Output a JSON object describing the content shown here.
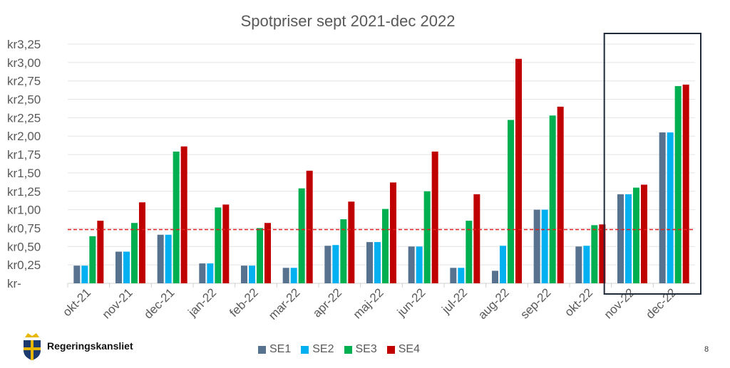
{
  "page_number": "8",
  "logo_text": "Regeringskansliet",
  "chart_data": {
    "type": "bar",
    "title": "Spotpriser sept 2021-dec 2022",
    "xlabel": "",
    "ylabel": "",
    "ylim": [
      0,
      3.25
    ],
    "yticks": [
      0,
      0.25,
      0.5,
      0.75,
      1.0,
      1.25,
      1.5,
      1.75,
      2.0,
      2.25,
      2.5,
      2.75,
      3.0,
      3.25
    ],
    "ytick_labels": [
      "kr-",
      "kr0,25",
      "kr0,50",
      "kr0,75",
      "kr1,00",
      "kr1,25",
      "kr1,50",
      "kr1,75",
      "kr2,00",
      "kr2,25",
      "kr2,50",
      "kr2,75",
      "kr3,00",
      "kr3,25"
    ],
    "grid": true,
    "legend_position": "bottom",
    "categories": [
      "okt-21",
      "nov-21",
      "dec-21",
      "jan-22",
      "feb-22",
      "mar-22",
      "apr-22",
      "maj-22",
      "jun-22",
      "jul-22",
      "aug-22",
      "sep-22",
      "okt-22",
      "nov-22",
      "dec-22"
    ],
    "series": [
      {
        "name": "SE1",
        "color": "#56728f",
        "values": [
          0.24,
          0.43,
          0.66,
          0.27,
          0.24,
          0.21,
          0.51,
          0.56,
          0.5,
          0.21,
          0.17,
          1.0,
          0.5,
          1.21,
          2.05
        ]
      },
      {
        "name": "SE2",
        "color": "#00b0f0",
        "values": [
          0.24,
          0.43,
          0.66,
          0.27,
          0.24,
          0.21,
          0.52,
          0.56,
          0.5,
          0.21,
          0.51,
          1.0,
          0.51,
          1.21,
          2.05
        ]
      },
      {
        "name": "SE3",
        "color": "#00b050",
        "values": [
          0.64,
          0.82,
          1.79,
          1.03,
          0.75,
          1.29,
          0.87,
          1.01,
          1.25,
          0.85,
          2.22,
          2.28,
          0.79,
          1.3,
          2.68
        ]
      },
      {
        "name": "SE4",
        "color": "#c00000",
        "values": [
          0.85,
          1.1,
          1.86,
          1.07,
          0.82,
          1.53,
          1.11,
          1.37,
          1.79,
          1.21,
          3.05,
          2.4,
          0.8,
          1.34,
          2.7
        ]
      }
    ],
    "reference_line": {
      "value": 0.73,
      "color": "#e02020",
      "style": "dashed"
    },
    "highlight_categories": [
      "nov-22",
      "dec-22"
    ]
  }
}
